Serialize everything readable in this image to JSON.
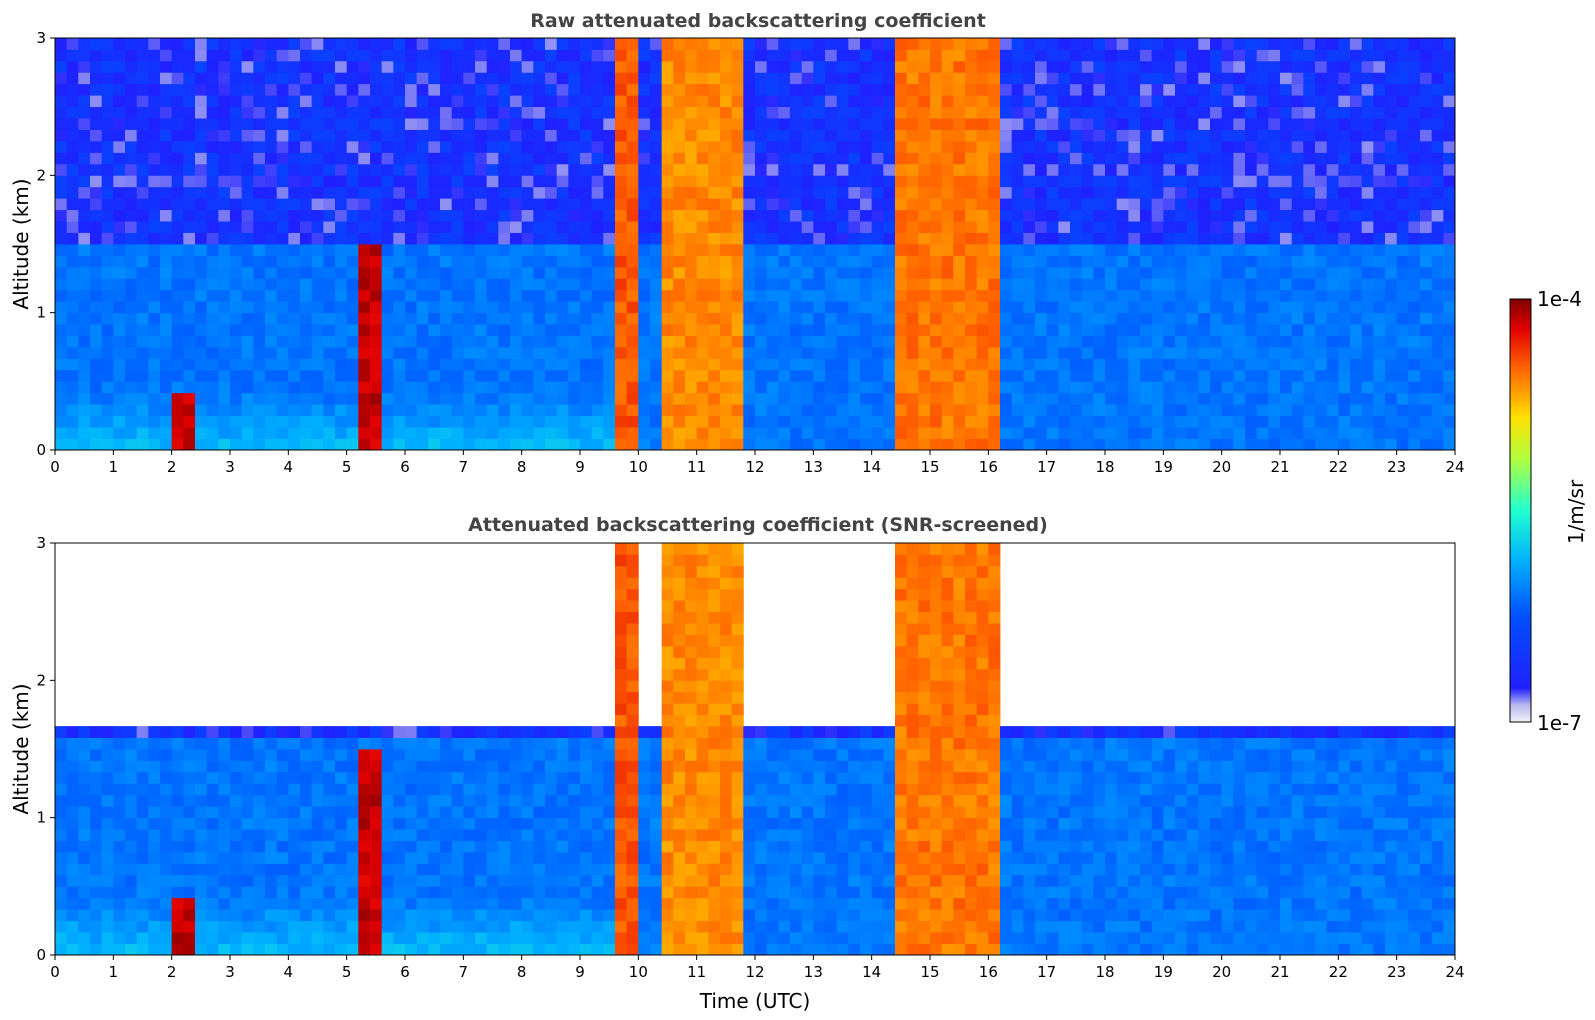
{
  "chart_data": [
    {
      "type": "heatmap",
      "title": "Raw attenuated backscattering coefficient",
      "xlabel": "",
      "ylabel": "Altitude (km)",
      "xlim": [
        0,
        24
      ],
      "ylim": [
        0,
        3
      ],
      "xticks": [
        "0",
        "1",
        "2",
        "3",
        "4",
        "5",
        "6",
        "7",
        "8",
        "9",
        "10",
        "11",
        "12",
        "13",
        "14",
        "15",
        "16",
        "17",
        "18",
        "19",
        "20",
        "21",
        "22",
        "23",
        "24"
      ],
      "yticks": [
        "0",
        "1",
        "2",
        "3"
      ],
      "noise": "full",
      "features": [
        {
          "name": "aerosol-layer",
          "x": [
            0,
            24
          ],
          "top_km": 1.5,
          "level": 0.3
        },
        {
          "name": "surface-layer",
          "x": [
            0,
            9.6
          ],
          "top_km": 0.5,
          "level": 0.4
        },
        {
          "name": "cloud-column-1",
          "x": [
            9.6,
            10.0
          ],
          "top_km": 3.0,
          "level": 0.85
        },
        {
          "name": "cloud-column-2",
          "x": [
            10.5,
            11.8
          ],
          "top_km": 3.0,
          "level": 0.8
        },
        {
          "name": "cloud-column-3",
          "x": [
            14.5,
            16.1
          ],
          "top_km": 3.0,
          "level": 0.82
        },
        {
          "name": "cloud-patch-5.5h",
          "x": [
            5.2,
            5.6
          ],
          "top_km": 1.5,
          "level": 0.95
        },
        {
          "name": "cloud-patch-2.2h",
          "x": [
            2.0,
            2.3
          ],
          "top_km": 0.4,
          "level": 0.95
        }
      ]
    },
    {
      "type": "heatmap",
      "title": "Attenuated backscattering coefficient (SNR-screened)",
      "xlabel": "Time (UTC)",
      "ylabel": "Altitude (km)",
      "xlim": [
        0,
        24
      ],
      "ylim": [
        0,
        3
      ],
      "xticks": [
        "0",
        "1",
        "2",
        "3",
        "4",
        "5",
        "6",
        "7",
        "8",
        "9",
        "10",
        "11",
        "12",
        "13",
        "14",
        "15",
        "16",
        "17",
        "18",
        "19",
        "20",
        "21",
        "22",
        "23",
        "24"
      ],
      "yticks": [
        "0",
        "1",
        "2",
        "3"
      ],
      "noise": "screened",
      "features": [
        {
          "name": "aerosol-layer",
          "x": [
            0,
            24
          ],
          "top_km": 1.6,
          "level": 0.3
        },
        {
          "name": "surface-layer",
          "x": [
            0,
            9.6
          ],
          "top_km": 0.5,
          "level": 0.4
        },
        {
          "name": "cloud-column-1",
          "x": [
            9.6,
            10.0
          ],
          "top_km": 3.0,
          "level": 0.85
        },
        {
          "name": "cloud-column-2",
          "x": [
            10.5,
            11.8
          ],
          "top_km": 3.0,
          "level": 0.8
        },
        {
          "name": "cloud-column-3",
          "x": [
            14.5,
            16.1
          ],
          "top_km": 3.0,
          "level": 0.82
        },
        {
          "name": "cloud-patch-5.5h",
          "x": [
            5.2,
            5.6
          ],
          "top_km": 1.5,
          "level": 0.95
        },
        {
          "name": "cloud-patch-2.2h",
          "x": [
            2.0,
            2.3
          ],
          "top_km": 0.4,
          "level": 0.95
        }
      ]
    }
  ],
  "colorbar": {
    "label": "1/m/sr",
    "max_label": "1e-4",
    "min_label": "1e-7",
    "scale": "log",
    "colormap": "jet"
  }
}
